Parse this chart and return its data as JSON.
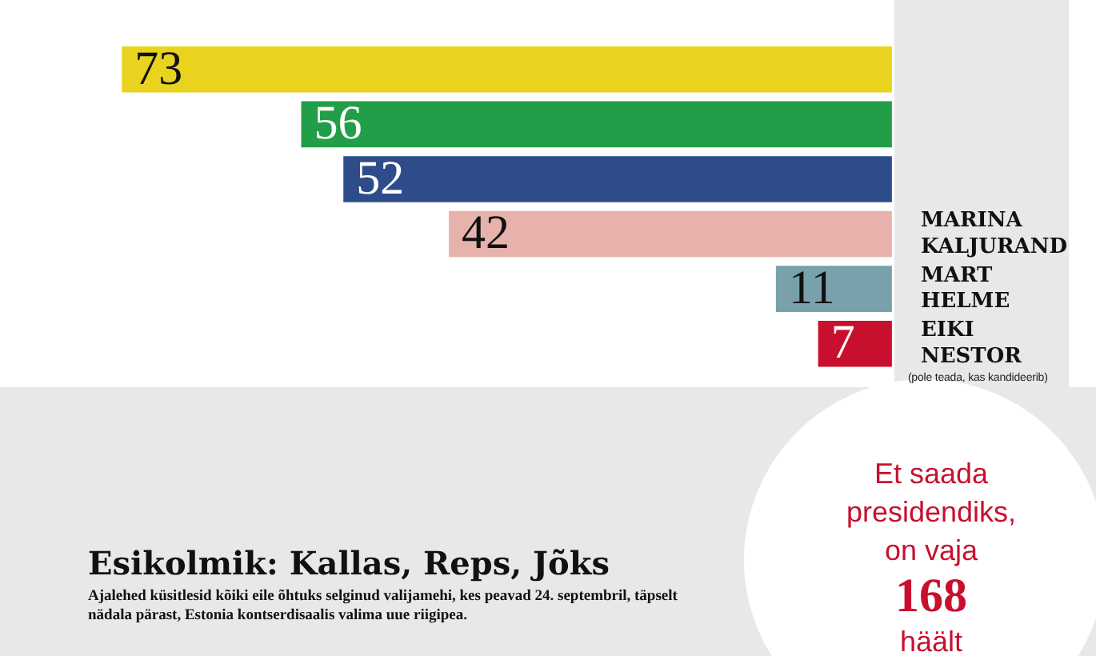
{
  "chart_data": {
    "type": "bar",
    "orientation": "horizontal",
    "title": "Esikolmik: Kallas, Reps, Jõks",
    "categories": [
      null,
      null,
      null,
      "MARINA KALJURAND",
      "MART HELME",
      "EIKI NESTOR"
    ],
    "values": [
      73,
      56,
      52,
      42,
      11,
      7
    ],
    "colors": [
      "#e9d31e",
      "#229e48",
      "#2e4c8a",
      "#e6b2ab",
      "#78a1ac",
      "#c8102e"
    ],
    "data_labels": true,
    "tick_labels": "y",
    "annotations": [
      "(pole teada, kas kandideerib)",
      "Et saada presidendiks, on vaja 168 häält",
      "Ajalehed küsitlesid kõiki eile õhtuks selginud valijamehi, kes peavad 24. septembril, täpselt nädala pärast, Estonia kontserdisaalis valima uue riigipea."
    ]
  }
}
